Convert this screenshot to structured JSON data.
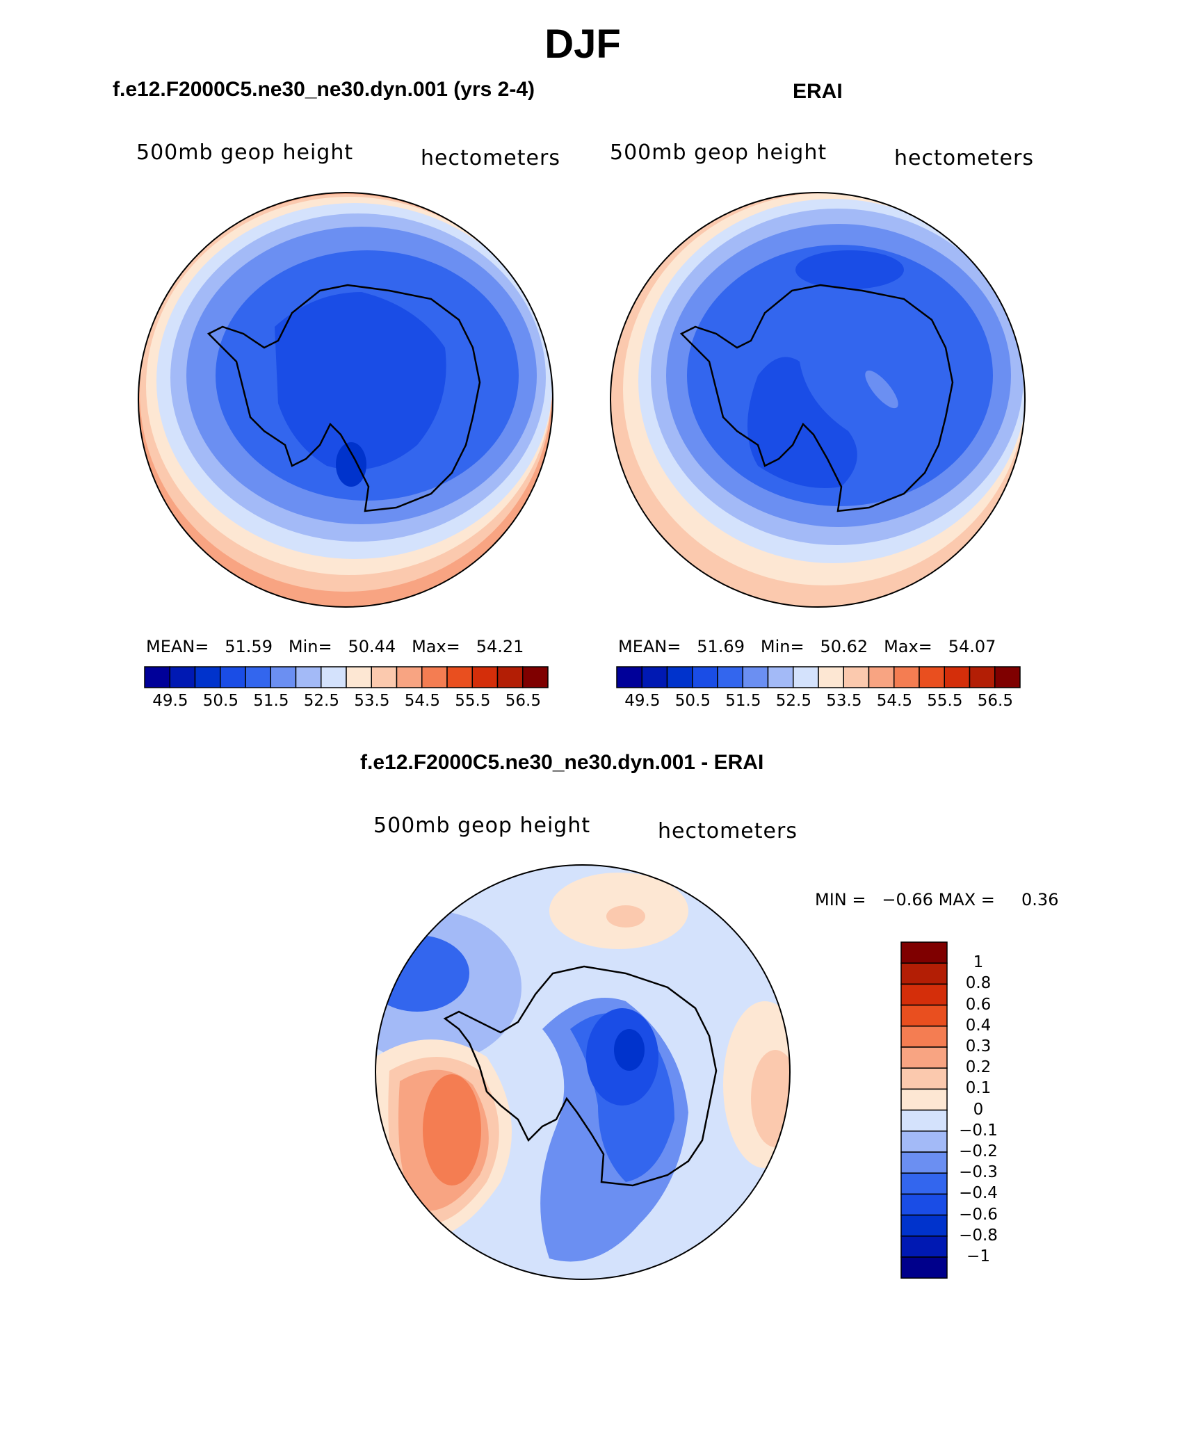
{
  "title": "DJF",
  "colors": {
    "abs_scale": [
      "#000099",
      "#0019b3",
      "#0033cc",
      "#1a4de6",
      "#3366ee",
      "#6b8ff2",
      "#a3baf7",
      "#d4e2fc",
      "#fde7d3",
      "#fbc9ae",
      "#f8a482",
      "#f47d52",
      "#e94f1f",
      "#d42e0a",
      "#b31e05",
      "#7f0000"
    ],
    "diff_scale": [
      "#00008b",
      "#0019b3",
      "#0033cc",
      "#1a4de6",
      "#3366ee",
      "#6b8ff2",
      "#a3baf7",
      "#d4e2fc",
      "#fde7d3",
      "#fbc9ae",
      "#f8a482",
      "#f47d52",
      "#e94f1f",
      "#d42e0a",
      "#b31e05",
      "#7f0000"
    ]
  },
  "panels": [
    {
      "heading": "f.e12.F2000C5.ne30_ne30.dyn.001 (yrs 2-4)",
      "left_label": "500mb geop height",
      "right_label": "hectometers",
      "stats": {
        "mean_label": "MEAN=",
        "mean": "51.59",
        "min_label": "Min=",
        "min": "50.44",
        "max_label": "Max=",
        "max": "54.21"
      },
      "colorbar_ticks": [
        "49.5",
        "50.5",
        "51.5",
        "52.5",
        "53.5",
        "54.5",
        "55.5",
        "56.5"
      ]
    },
    {
      "heading": "ERAI",
      "left_label": "500mb geop height",
      "right_label": "hectometers",
      "stats": {
        "mean_label": "MEAN=",
        "mean": "51.69",
        "min_label": "Min=",
        "min": "50.62",
        "max_label": "Max=",
        "max": "54.07"
      },
      "colorbar_ticks": [
        "49.5",
        "50.5",
        "51.5",
        "52.5",
        "53.5",
        "54.5",
        "55.5",
        "56.5"
      ]
    }
  ],
  "difference": {
    "heading": "f.e12.F2000C5.ne30_ne30.dyn.001 - ERAI",
    "left_label": "500mb geop height",
    "right_label": "hectometers",
    "min_label": "MIN =",
    "min": "−0.66",
    "max_label": "MAX =",
    "max": "0.36",
    "colorbar_ticks": [
      "1",
      "0.8",
      "0.6",
      "0.4",
      "0.3",
      "0.2",
      "0.1",
      "0",
      "−0.1",
      "−0.2",
      "−0.3",
      "−0.4",
      "−0.6",
      "−0.8",
      "−1"
    ]
  }
}
